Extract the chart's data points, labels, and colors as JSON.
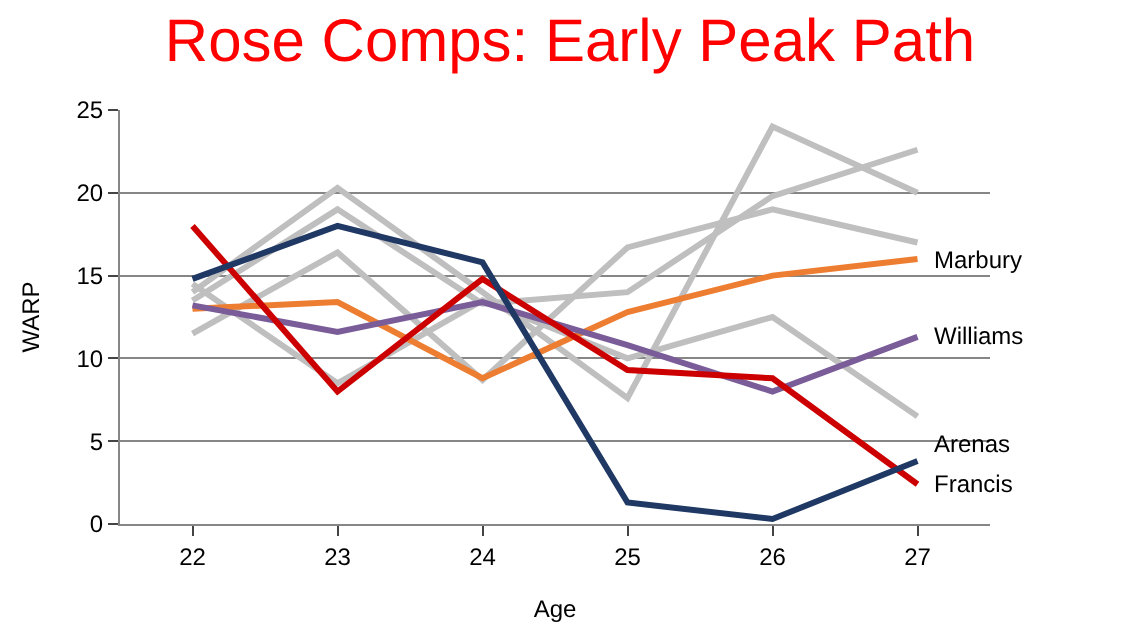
{
  "chart_data": {
    "type": "line",
    "title": "Rose Comps: Early Peak Path",
    "xlabel": "Age",
    "ylabel": "WARP",
    "categories": [
      "22",
      "23",
      "24",
      "25",
      "26",
      "27"
    ],
    "series": [
      {
        "color": "#bfbfbf",
        "values": [
          14,
          20.3,
          14,
          7.6,
          24,
          20
        ]
      },
      {
        "color": "#bfbfbf",
        "values": [
          13.5,
          19,
          13.3,
          14,
          19.8,
          22.6
        ]
      },
      {
        "color": "#bfbfbf",
        "values": [
          11.5,
          16.4,
          8.7,
          16.7,
          19,
          17
        ]
      },
      {
        "color": "#bfbfbf",
        "values": [
          14.5,
          8.5,
          13.5,
          10,
          12.5,
          6.5
        ]
      },
      {
        "name": "Marbury",
        "color": "#ed7d31",
        "values": [
          13,
          13.4,
          8.8,
          12.8,
          15,
          16
        ]
      },
      {
        "name": "Williams",
        "color": "#7a5c99",
        "values": [
          13.2,
          11.6,
          13.4,
          10.8,
          8,
          11.3
        ]
      },
      {
        "name": "Francis",
        "color": "#cc0000",
        "values": [
          18,
          8,
          14.8,
          9.3,
          8.8,
          2.4
        ]
      },
      {
        "name": "Arenas",
        "color": "#1f3864",
        "values": [
          14.8,
          18,
          15.8,
          1.3,
          0.3,
          3.8
        ]
      }
    ],
    "ylim": [
      0,
      25
    ],
    "yticks": [
      0,
      5,
      10,
      15,
      20,
      25
    ],
    "grid": "y",
    "legend": false,
    "marker": "none",
    "line_style": "solid"
  }
}
